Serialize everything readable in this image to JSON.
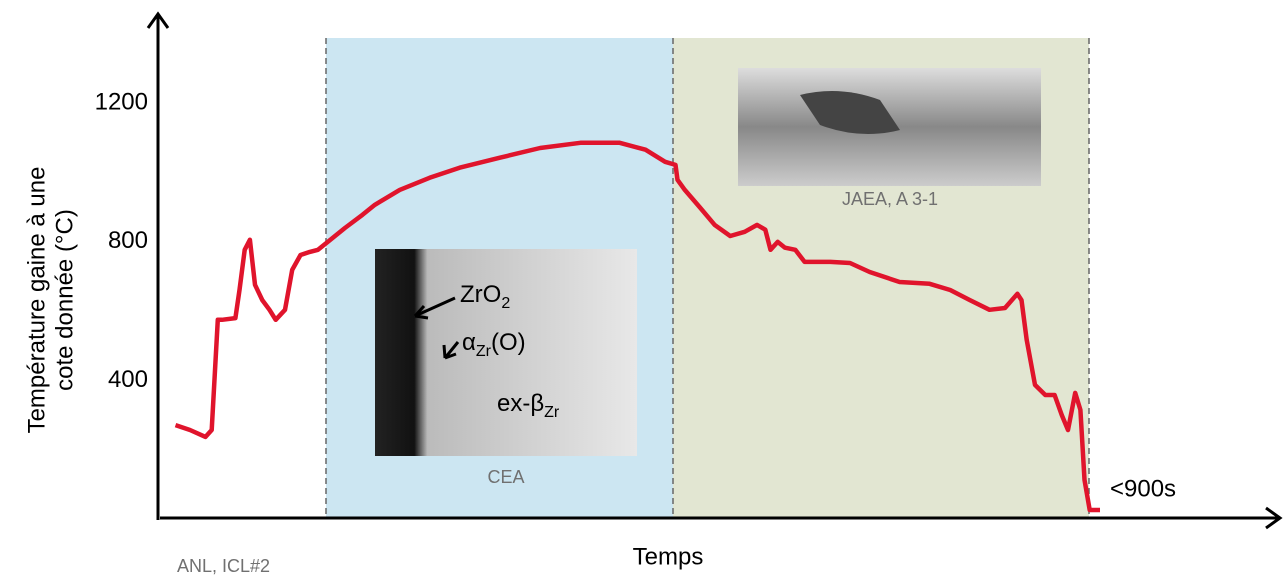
{
  "chart_data": {
    "type": "line",
    "y_label_lines": [
      "Température gaine à une",
      "cote donnée (°C)"
    ],
    "x_label": "Temps",
    "end_label": "<900s",
    "captions": [
      "ANL, ICL#2",
      "CEA",
      "JAEA, A 3-1"
    ],
    "micrograph_labels": [
      {
        "text": "ZrO",
        "sub": "2"
      },
      {
        "text": "α",
        "sub": "Zr",
        "after": "(O)"
      },
      {
        "text": "ex-β",
        "sub": "Zr"
      }
    ],
    "ylim": [
      0,
      1400
    ],
    "yticks": [
      400,
      800,
      1200
    ],
    "xlim": [
      0,
      1000
    ],
    "series": [
      {
        "color": "#e0142c",
        "x": [
          15,
          29,
          44,
          50,
          56,
          60,
          73,
          77,
          82,
          87,
          92,
          99,
          106,
          112,
          121,
          128,
          136,
          145,
          153,
          165,
          179,
          196,
          208,
          232,
          261,
          290,
          329,
          368,
          407,
          445,
          470,
          489,
          499,
          501,
          508,
          523,
          537,
          552,
          566,
          578,
          586,
          591,
          598,
          605,
          615,
          624,
          649,
          668,
          687,
          716,
          745,
          765,
          784,
          803,
          818,
          830,
          834,
          839,
          847,
          857,
          866,
          873,
          879,
          886,
          891,
          895,
          900,
          910
        ],
        "values": [
          271,
          257,
          237,
          257,
          575,
          575,
          580,
          661,
          777,
          806,
          676,
          632,
          604,
          575,
          604,
          719,
          762,
          771,
          777,
          806,
          840,
          878,
          907,
          950,
          985,
          1014,
          1043,
          1071,
          1086,
          1086,
          1066,
          1031,
          1022,
          979,
          950,
          898,
          849,
          817,
          829,
          849,
          835,
          777,
          800,
          783,
          777,
          742,
          742,
          739,
          713,
          684,
          679,
          661,
          632,
          604,
          609,
          650,
          632,
          517,
          387,
          358,
          358,
          300,
          257,
          364,
          315,
          113,
          26,
          26
        ]
      }
    ]
  }
}
